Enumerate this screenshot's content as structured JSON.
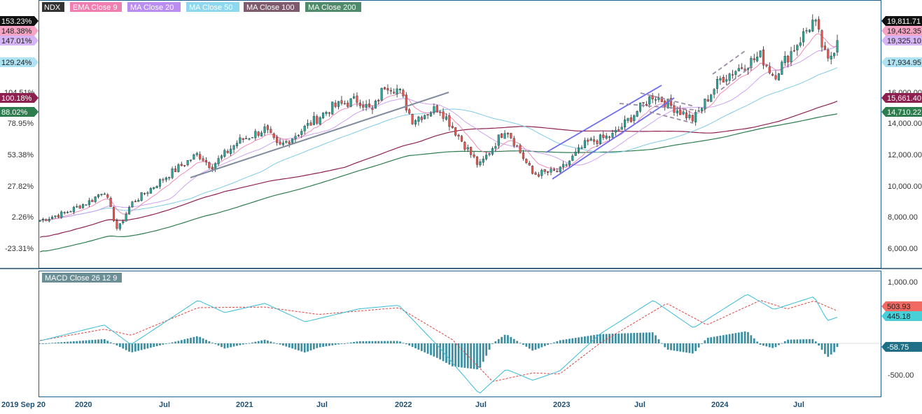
{
  "symbol": "NDX",
  "legend": [
    {
      "label": "NDX",
      "color": "#333333"
    },
    {
      "label": "EMA Close 9",
      "color": "#ef7fb0"
    },
    {
      "label": "MA Close 20",
      "color": "#b98ef0"
    },
    {
      "label": "MA Close 50",
      "color": "#8ed8ef"
    },
    {
      "label": "MA Close 100",
      "color": "#7d5a6c"
    },
    {
      "label": "MA Close 200",
      "color": "#4f8a6a"
    }
  ],
  "macd_label": "MACD Close 26 12 9",
  "colors": {
    "up": "#26a69a",
    "down": "#ef5350",
    "ema9": "#ef7fb0",
    "ma20": "#c89af3",
    "ma50": "#7fcbe6",
    "ma100": "#8e2050",
    "ma200": "#2e7d4f",
    "macd": "#36bcd9",
    "signal": "#e0413c",
    "hist": "#3a8ea0",
    "trend_gray": "#7f8b9c",
    "trend_blue": "#6b6bf0",
    "channel_dash": "#9a8aa6"
  },
  "left_axis": {
    "ticks": [
      "78.95%",
      "53.38%",
      "27.82%",
      "2.26%",
      "-23.31%"
    ],
    "tags": [
      {
        "text": "153.23%",
        "bg": "#111111",
        "fg": "#ffffff"
      },
      {
        "text": "148.38%",
        "bg": "#f7a3c4",
        "fg": "#222222"
      },
      {
        "text": "147.01%",
        "bg": "#d5b5f5",
        "fg": "#222222"
      },
      {
        "text": "129.24%",
        "bg": "#aee3f3",
        "fg": "#222222"
      },
      {
        "text": "104.51%",
        "bg": "#ffffff",
        "fg": "#333333"
      },
      {
        "text": "100.18%",
        "bg": "#8e2050",
        "fg": "#ffffff"
      },
      {
        "text": "88.02%",
        "bg": "#2e7d4f",
        "fg": "#ffffff"
      }
    ]
  },
  "right_axis": {
    "ticks": [
      "14,000.00",
      "12,000.00",
      "10,000.00",
      "8,000.00",
      "6,000.00"
    ],
    "tags": [
      {
        "text": "19,811.71",
        "bg": "#111111",
        "fg": "#ffffff"
      },
      {
        "text": "19,432.35",
        "bg": "#f7a3c4",
        "fg": "#222222"
      },
      {
        "text": "19,325.10",
        "bg": "#d5b5f5",
        "fg": "#222222"
      },
      {
        "text": "17,934.95",
        "bg": "#aee3f3",
        "fg": "#222222"
      },
      {
        "text": "16,000.00",
        "bg": "#ffffff",
        "fg": "#333333"
      },
      {
        "text": "15,661.40",
        "bg": "#8e2050",
        "fg": "#ffffff"
      },
      {
        "text": "14,710.22",
        "bg": "#2e7d4f",
        "fg": "#ffffff"
      }
    ]
  },
  "macd_axis": {
    "ticks": [
      "1,000.00",
      "-500.00"
    ],
    "tags": [
      {
        "text": "503.93",
        "bg": "#f06a62",
        "fg": "#222222"
      },
      {
        "text": "445.18",
        "bg": "#48cfd8",
        "fg": "#222222"
      },
      {
        "text": "-58.75",
        "bg": "#1f6f86",
        "fg": "#ffffff"
      }
    ]
  },
  "x_axis": {
    "labels": [
      "2019 Sep 20",
      "2020",
      "Jul",
      "2021",
      "Jul",
      "2022",
      "Jul",
      "2023",
      "Jul",
      "2024",
      "Jul"
    ]
  },
  "chart_data": {
    "type": "candlestick",
    "symbol": "NDX",
    "interval": "weekly",
    "start_date": "2019 Sep 20",
    "y_range": [
      4800,
      20300
    ],
    "right_axis_ticks": [
      6000,
      8000,
      10000,
      12000,
      14000,
      16000
    ],
    "last_values": {
      "close": 19811.71,
      "ema9": 19432.35,
      "ma20": 19325.1,
      "ma50": 17934.95,
      "ma100": 15661.4,
      "ma200": 14710.22
    },
    "close_path": [
      [
        "2019 Sep 20",
        7740
      ],
      [
        "2019 Nov",
        8200
      ],
      [
        "2020 Jan",
        9000
      ],
      [
        "2020 Feb",
        9700
      ],
      [
        "2020 Mar",
        7100
      ],
      [
        "2020 Apr",
        8800
      ],
      [
        "2020 Jul",
        10800
      ],
      [
        "2020 Sep",
        12000
      ],
      [
        "2020 Oct",
        11200
      ],
      [
        "2020 Dec",
        12800
      ],
      [
        "2021 Feb",
        13600
      ],
      [
        "2021 Mar",
        12400
      ],
      [
        "2021 Jul",
        15000
      ],
      [
        "2021 Sep",
        15500
      ],
      [
        "2021 Oct",
        14700
      ],
      [
        "2021 Nov",
        16500
      ],
      [
        "2021 Dec",
        16100
      ],
      [
        "2022 Jan",
        14200
      ],
      [
        "2022 Mar",
        15000
      ],
      [
        "2022 Jun",
        11200
      ],
      [
        "2022 Aug",
        13700
      ],
      [
        "2022 Oct",
        10700
      ],
      [
        "2022 Dec",
        10900
      ],
      [
        "2023 Feb",
        12700
      ],
      [
        "2023 Apr",
        13200
      ],
      [
        "2023 Jul",
        15800
      ],
      [
        "2023 Oct",
        14200
      ],
      [
        "2023 Dec",
        16800
      ],
      [
        "2024 Mar",
        18300
      ],
      [
        "2024 Apr",
        17000
      ],
      [
        "2024 Jul",
        20600
      ],
      [
        "2024 Aug",
        17800
      ],
      [
        "2024 Sep",
        19811.71
      ]
    ],
    "macd": {
      "params": [
        26,
        12,
        9
      ],
      "y_range": [
        -800,
        1150
      ],
      "last": {
        "macd": 445.18,
        "signal": 503.93,
        "hist": -58.75
      },
      "macd_path": [
        [
          "2019 Sep",
          30
        ],
        [
          "2020 Feb",
          300
        ],
        [
          "2020 Apr",
          -20
        ],
        [
          "2020 Sep",
          700
        ],
        [
          "2020 Nov",
          500
        ],
        [
          "2021 Feb",
          650
        ],
        [
          "2021 May",
          350
        ],
        [
          "2021 Sep",
          560
        ],
        [
          "2021 Dec",
          620
        ],
        [
          "2022 Mar",
          -60
        ],
        [
          "2022 Jun",
          -820
        ],
        [
          "2022 Aug",
          -420
        ],
        [
          "2022 Oct",
          -600
        ],
        [
          "2022 Dec",
          -450
        ],
        [
          "2023 Mar",
          150
        ],
        [
          "2023 Jul",
          700
        ],
        [
          "2023 Oct",
          250
        ],
        [
          "2024 Feb",
          800
        ],
        [
          "2024 Apr",
          550
        ],
        [
          "2024 Jul",
          760
        ],
        [
          "2024 Aug",
          370
        ],
        [
          "2024 Sep",
          445.18
        ]
      ],
      "signal_path": [
        [
          "2019 Sep",
          40
        ],
        [
          "2020 Feb",
          230
        ],
        [
          "2020 Apr",
          130
        ],
        [
          "2020 Sep",
          580
        ],
        [
          "2021 Feb",
          590
        ],
        [
          "2021 Jun",
          470
        ],
        [
          "2021 Dec",
          580
        ],
        [
          "2022 Apr",
          60
        ],
        [
          "2022 Jul",
          -620
        ],
        [
          "2022 Oct",
          -480
        ],
        [
          "2022 Dec",
          -500
        ],
        [
          "2023 Mar",
          0
        ],
        [
          "2023 Aug",
          650
        ],
        [
          "2023 Nov",
          300
        ],
        [
          "2024 Mar",
          700
        ],
        [
          "2024 May",
          560
        ],
        [
          "2024 Jul",
          690
        ],
        [
          "2024 Sep",
          503.93
        ]
      ]
    }
  }
}
